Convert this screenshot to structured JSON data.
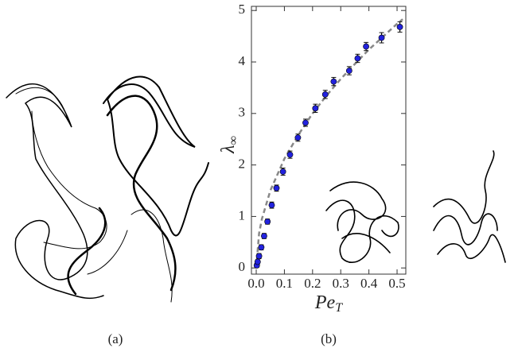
{
  "captions": [
    "(a)",
    "(b)"
  ],
  "chart_data": {
    "type": "scatter",
    "xlabel": {
      "symbol": "Pe",
      "subscript": "T"
    },
    "ylabel": {
      "symbol": "λ",
      "subscript": "∞"
    },
    "xlim": [
      -0.017,
      0.531
    ],
    "ylim": [
      -0.12,
      5.08
    ],
    "xticks": [
      {
        "value": 0,
        "label": "0.0"
      },
      0.1,
      0.2,
      0.3,
      0.4,
      0.5
    ],
    "yticks": [
      0,
      1,
      2,
      3,
      4,
      5
    ],
    "color": "#2222dd",
    "x": [
      0.002,
      0.005,
      0.01,
      0.018,
      0.028,
      0.04,
      0.055,
      0.072,
      0.095,
      0.12,
      0.148,
      0.175,
      0.21,
      0.245,
      0.275,
      0.33,
      0.36,
      0.39,
      0.445,
      0.51
    ],
    "values": [
      0.05,
      0.12,
      0.23,
      0.4,
      0.62,
      0.9,
      1.22,
      1.55,
      1.87,
      2.2,
      2.53,
      2.82,
      3.1,
      3.37,
      3.62,
      3.83,
      4.07,
      4.3,
      4.47,
      4.68
    ],
    "errors": [
      0.04,
      0.04,
      0.05,
      0.05,
      0.05,
      0.05,
      0.06,
      0.06,
      0.07,
      0.07,
      0.07,
      0.07,
      0.08,
      0.08,
      0.08,
      0.08,
      0.08,
      0.08,
      0.1,
      0.1
    ],
    "fit": {
      "color": "#888888",
      "x": [
        0,
        0.01,
        0.02,
        0.05,
        0.1,
        0.15,
        0.2,
        0.25,
        0.3,
        0.35,
        0.4,
        0.45,
        0.5,
        0.52
      ],
      "values": [
        0,
        0.67,
        0.95,
        1.5,
        2.12,
        2.59,
        3.0,
        3.35,
        3.67,
        3.96,
        4.24,
        4.49,
        4.74,
        4.83
      ]
    }
  }
}
